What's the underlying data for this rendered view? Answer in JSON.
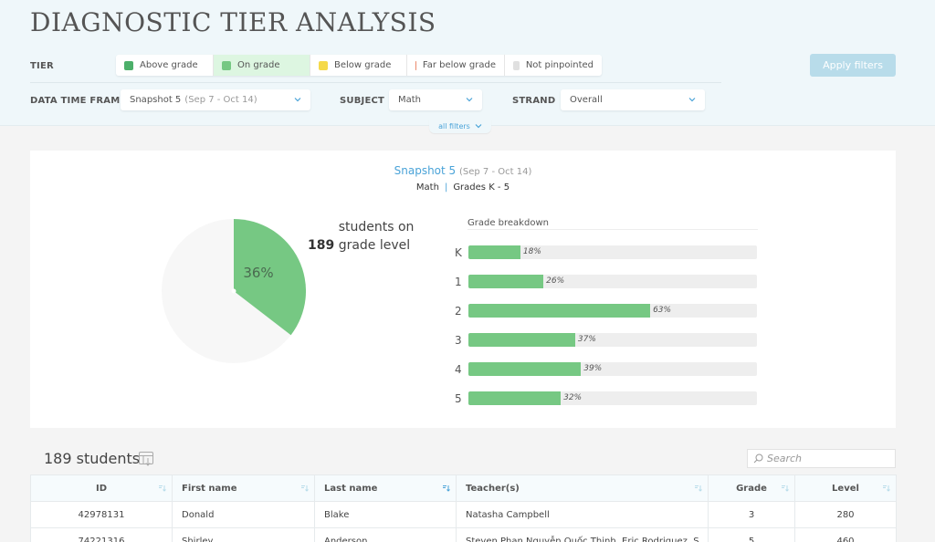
{
  "page": {
    "title": "DIAGNOSTIC TIER ANALYSIS"
  },
  "filters": {
    "tier_label": "TIER",
    "tiers": [
      {
        "label": "Above grade",
        "color": "#4caf6a",
        "selected": false
      },
      {
        "label": "On grade",
        "color": "#76c883",
        "selected": true
      },
      {
        "label": "Below grade",
        "color": "#f5d94a",
        "selected": false
      },
      {
        "label": "Far below grade",
        "color": "#ec8a6c",
        "selected": false
      },
      {
        "label": "Not pinpointed",
        "color": "#e0e0e0",
        "selected": false
      }
    ],
    "apply_label": "Apply filters",
    "timeframe_label": "DATA TIME FRAME",
    "timeframe_value": "Snapshot 5",
    "timeframe_sub": "(Sep 7 - Oct 14)",
    "subject_label": "SUBJECT",
    "subject_value": "Math",
    "strand_label": "STRAND",
    "strand_value": "Overall",
    "all_filters_label": "all filters"
  },
  "summary": {
    "snapshot": "Snapshot 5",
    "snapshot_dates": "(Sep 7 - Oct 14)",
    "subject": "Math",
    "grades": "Grades K - 5",
    "pie_percent": "36%",
    "students_count": "189",
    "students_text": "students on grade level",
    "breakdown_title": "Grade breakdown",
    "accent_color": "#76c883"
  },
  "chart_data": [
    {
      "type": "pie",
      "title": "189 students on grade level",
      "labels": [
        "On grade",
        "Other"
      ],
      "values": [
        36,
        64
      ],
      "colors": [
        "#76c883",
        "#f7f7f7"
      ]
    },
    {
      "type": "bar",
      "orientation": "horizontal",
      "title": "Grade breakdown",
      "categories": [
        "K",
        "1",
        "2",
        "3",
        "4",
        "5"
      ],
      "values": [
        18,
        26,
        63,
        37,
        39,
        32
      ],
      "labels": [
        "18%",
        "26%",
        "63%",
        "37%",
        "39%",
        "32%"
      ],
      "xlim": [
        0,
        100
      ],
      "grid": false
    }
  ],
  "students": {
    "count_label": "189 students",
    "search_placeholder": "Search",
    "columns": [
      "ID",
      "First name",
      "Last name",
      "Teacher(s)",
      "Grade",
      "Level"
    ],
    "rows": [
      [
        "42978131",
        "Donald",
        "Blake",
        "Natasha Campbell",
        "3",
        "280"
      ],
      [
        "74221316",
        "Shirley",
        "Anderson",
        "Steven Phan Nguyễn Quốc Thịnh, Eric Rodriguez, S",
        "5",
        "460"
      ]
    ]
  }
}
